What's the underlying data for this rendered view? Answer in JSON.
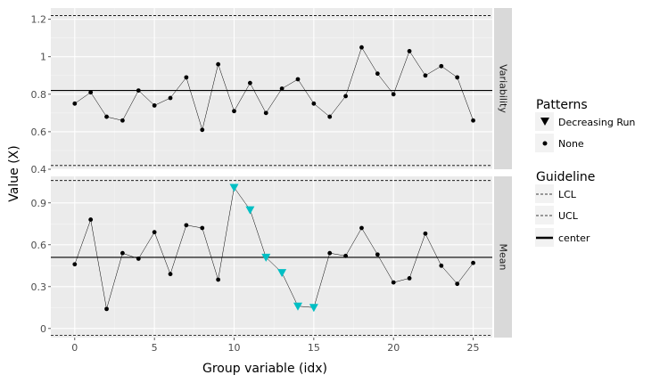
{
  "chart_data": {
    "type": "line",
    "xlabel": "Group variable (idx)",
    "ylabel": "Value (X)",
    "x_ticks": [
      0,
      5,
      10,
      15,
      20,
      25
    ],
    "xlim": [
      -1.5,
      26.2
    ],
    "x": [
      0,
      1,
      2,
      3,
      4,
      5,
      6,
      7,
      8,
      9,
      10,
      11,
      12,
      13,
      14,
      15,
      16,
      17,
      18,
      19,
      20,
      21,
      22,
      23,
      24,
      25
    ],
    "panels": [
      {
        "name": "Variability",
        "ylim": [
          0.4,
          1.26
        ],
        "y_ticks": [
          0.4,
          0.6,
          0.8,
          1.0,
          1.2
        ],
        "y_tick_labels": [
          "0.4",
          "0.6",
          "0.8",
          "1",
          "1.2"
        ],
        "values": [
          0.75,
          0.81,
          0.68,
          0.66,
          0.82,
          0.74,
          0.78,
          0.89,
          0.61,
          0.96,
          0.71,
          0.86,
          0.7,
          0.83,
          0.88,
          0.75,
          0.68,
          0.79,
          1.05,
          0.91,
          0.8,
          1.03,
          0.9,
          0.95,
          0.89,
          0.66
        ],
        "patterns": [
          "None",
          "None",
          "None",
          "None",
          "None",
          "None",
          "None",
          "None",
          "None",
          "None",
          "None",
          "None",
          "None",
          "None",
          "None",
          "None",
          "None",
          "None",
          "None",
          "None",
          "None",
          "None",
          "None",
          "None",
          "None",
          "None"
        ],
        "lcl": 0.42,
        "ucl": 1.22,
        "center": 0.82
      },
      {
        "name": "Mean",
        "ylim": [
          -0.065,
          1.09
        ],
        "y_ticks": [
          0,
          0.3,
          0.6,
          0.9
        ],
        "y_tick_labels": [
          "0",
          "0.3",
          "0.6",
          "0.9"
        ],
        "values": [
          0.46,
          0.78,
          0.14,
          0.54,
          0.5,
          0.69,
          0.39,
          0.74,
          0.72,
          0.35,
          1.01,
          0.85,
          0.51,
          0.4,
          0.16,
          0.15,
          0.54,
          0.52,
          0.72,
          0.53,
          0.33,
          0.36,
          0.68,
          0.45,
          0.32,
          0.47
        ],
        "patterns": [
          "None",
          "None",
          "None",
          "None",
          "None",
          "None",
          "None",
          "None",
          "None",
          "None",
          "Decreasing Run",
          "Decreasing Run",
          "Decreasing Run",
          "Decreasing Run",
          "Decreasing Run",
          "Decreasing Run",
          "None",
          "None",
          "None",
          "None",
          "None",
          "None",
          "None",
          "None",
          "None",
          "None"
        ],
        "lcl": -0.05,
        "ucl": 1.06,
        "center": 0.51
      }
    ],
    "legend": {
      "patterns_title": "Patterns",
      "patterns": [
        {
          "label": "Decreasing Run",
          "shape": "triangle-down",
          "color": "#00BFC4"
        },
        {
          "label": "None",
          "shape": "circle",
          "color": "#000000"
        }
      ],
      "guideline_title": "Guideline",
      "guidelines": [
        {
          "label": "LCL",
          "style": "dashed"
        },
        {
          "label": "UCL",
          "style": "dashed"
        },
        {
          "label": "center",
          "style": "solid"
        }
      ],
      "placement": "right"
    },
    "grid": true,
    "colors": {
      "panel_bg": "#EBEBEB",
      "grid_major": "#FFFFFF",
      "strip_bg": "#D9D9D9",
      "decreasing_run": "#00BFC4",
      "none_point": "#000000"
    }
  }
}
